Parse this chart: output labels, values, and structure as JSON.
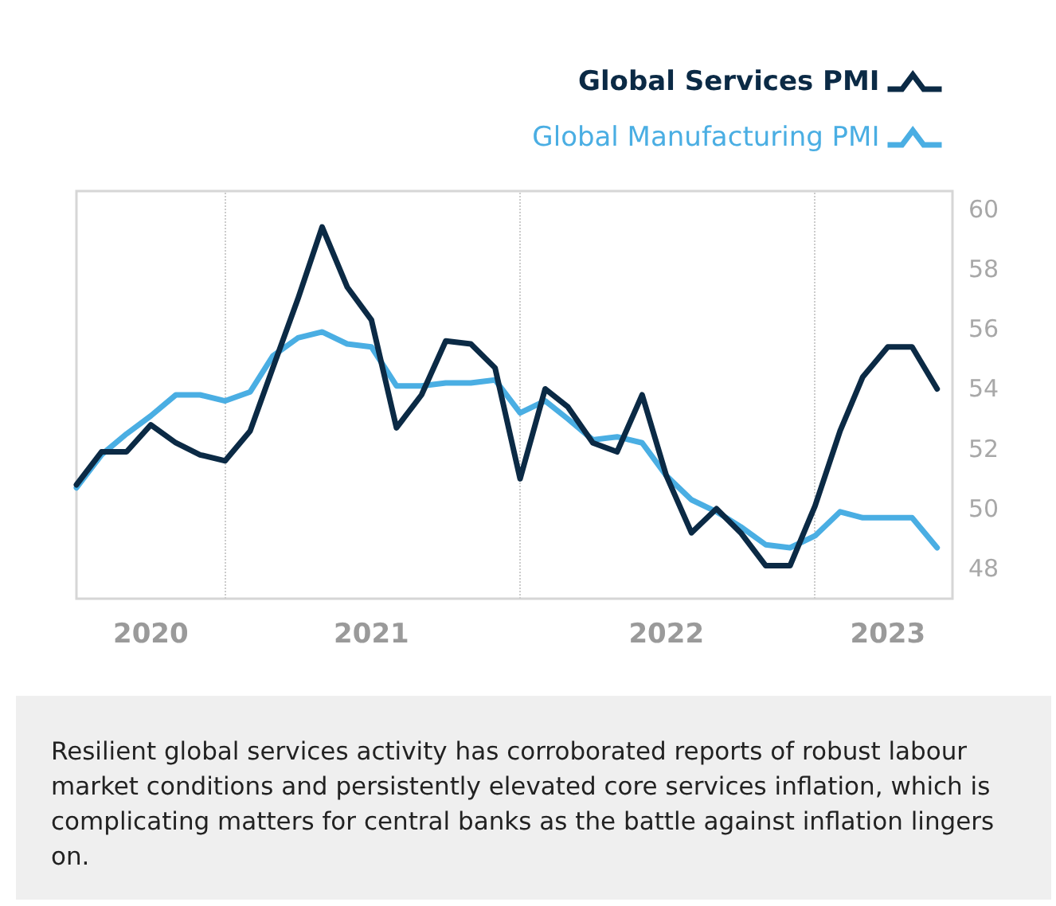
{
  "chart_data": {
    "type": "line",
    "x": [
      "2020-07",
      "2020-08",
      "2020-09",
      "2020-10",
      "2020-11",
      "2020-12",
      "2021-01",
      "2021-02",
      "2021-03",
      "2021-04",
      "2021-05",
      "2021-06",
      "2021-07",
      "2021-08",
      "2021-09",
      "2021-10",
      "2021-11",
      "2021-12",
      "2022-01",
      "2022-02",
      "2022-03",
      "2022-04",
      "2022-05",
      "2022-06",
      "2022-07",
      "2022-08",
      "2022-09",
      "2022-10",
      "2022-11",
      "2022-12",
      "2023-01",
      "2023-02",
      "2023-03",
      "2023-04",
      "2023-05",
      "2023-06"
    ],
    "series": [
      {
        "name": "Global Services PMI",
        "color": "#0b2a45",
        "values": [
          50.8,
          51.9,
          51.9,
          52.8,
          52.2,
          51.8,
          51.6,
          52.6,
          54.7,
          57.0,
          59.4,
          57.4,
          56.3,
          52.7,
          53.8,
          55.6,
          55.5,
          54.7,
          51.0,
          54.0,
          53.4,
          52.2,
          51.9,
          53.8,
          51.1,
          49.2,
          50.0,
          49.2,
          48.1,
          48.1,
          50.1,
          52.6,
          54.4,
          55.4,
          55.4,
          54.0
        ]
      },
      {
        "name": "Global Manufacturing PMI",
        "color": "#4aaee3",
        "values": [
          50.7,
          51.8,
          52.5,
          53.1,
          53.8,
          53.8,
          53.6,
          53.9,
          55.1,
          55.7,
          55.9,
          55.5,
          55.4,
          54.1,
          54.1,
          54.2,
          54.2,
          54.3,
          53.2,
          53.6,
          53.0,
          52.3,
          52.4,
          52.2,
          51.1,
          50.3,
          49.9,
          49.4,
          48.8,
          48.7,
          49.1,
          49.9,
          49.7,
          49.7,
          49.7,
          48.7
        ]
      }
    ],
    "xlim": [
      "2020-07",
      "2023-06-20"
    ],
    "xticks": [
      {
        "value": "2020-10-01",
        "label": "2020"
      },
      {
        "value": "2021-07-01",
        "label": "2021"
      },
      {
        "value": "2022-07-01",
        "label": "2022"
      },
      {
        "value": "2023-04-01",
        "label": "2023"
      }
    ],
    "ylim": [
      47,
      60.6
    ],
    "yticks": [
      48,
      50,
      52,
      54,
      56,
      58,
      60
    ],
    "ref_lines": [
      {
        "axis": "x",
        "value": "2021-01",
        "label": null,
        "color": "#cccccc",
        "line_style": "dotted"
      },
      {
        "axis": "x",
        "value": "2022-01",
        "label": null,
        "color": "#cccccc",
        "line_style": "dotted"
      },
      {
        "axis": "x",
        "value": "2023-01",
        "label": null,
        "color": "#cccccc",
        "line_style": "dotted"
      }
    ],
    "grid": false,
    "legend": "top right",
    "marker": "none",
    "line_style": "solid",
    "annotations": [
      "Resilient global services activity has corroborated reports of robust labour market conditions and persistently elevated core services inflation, which is complicating matters for central banks as the battle against inflation lingers on."
    ]
  }
}
